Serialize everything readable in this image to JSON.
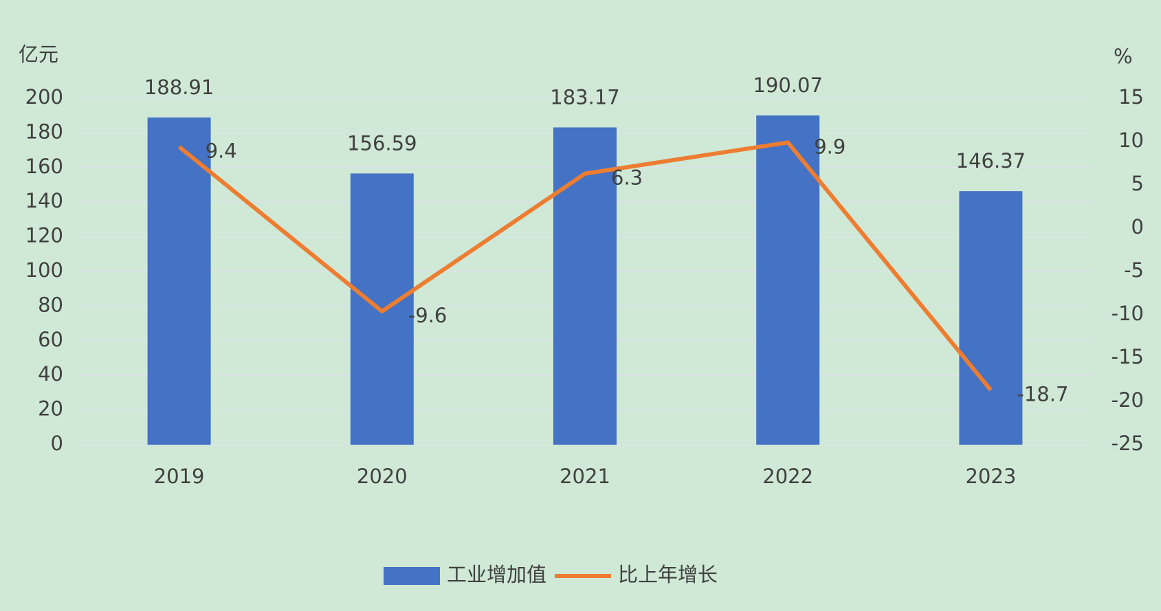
{
  "chart_data": {
    "type": "bar",
    "y_label": "亿元",
    "y2_label": "%",
    "categories": [
      "2019",
      "2020",
      "2021",
      "2022",
      "2023"
    ],
    "series": [
      {
        "name": "工业增加值",
        "type": "bar",
        "color": "#4472c4",
        "values": [
          188.91,
          156.59,
          183.17,
          190.07,
          146.37
        ]
      },
      {
        "name": "比上年增长",
        "type": "line",
        "color": "#ed7d31",
        "axis": "y2",
        "values": [
          9.4,
          -9.6,
          6.3,
          9.9,
          -18.7
        ]
      }
    ],
    "ylim": [
      0,
      200
    ],
    "yticks": [
      0,
      20,
      40,
      60,
      80,
      100,
      120,
      140,
      160,
      180,
      200
    ],
    "y2lim": [
      -25,
      15
    ],
    "y2ticks": [
      -25,
      -20,
      -15,
      -10,
      -5,
      0,
      5,
      10,
      15
    ],
    "grid": true,
    "legend": "bottom"
  }
}
